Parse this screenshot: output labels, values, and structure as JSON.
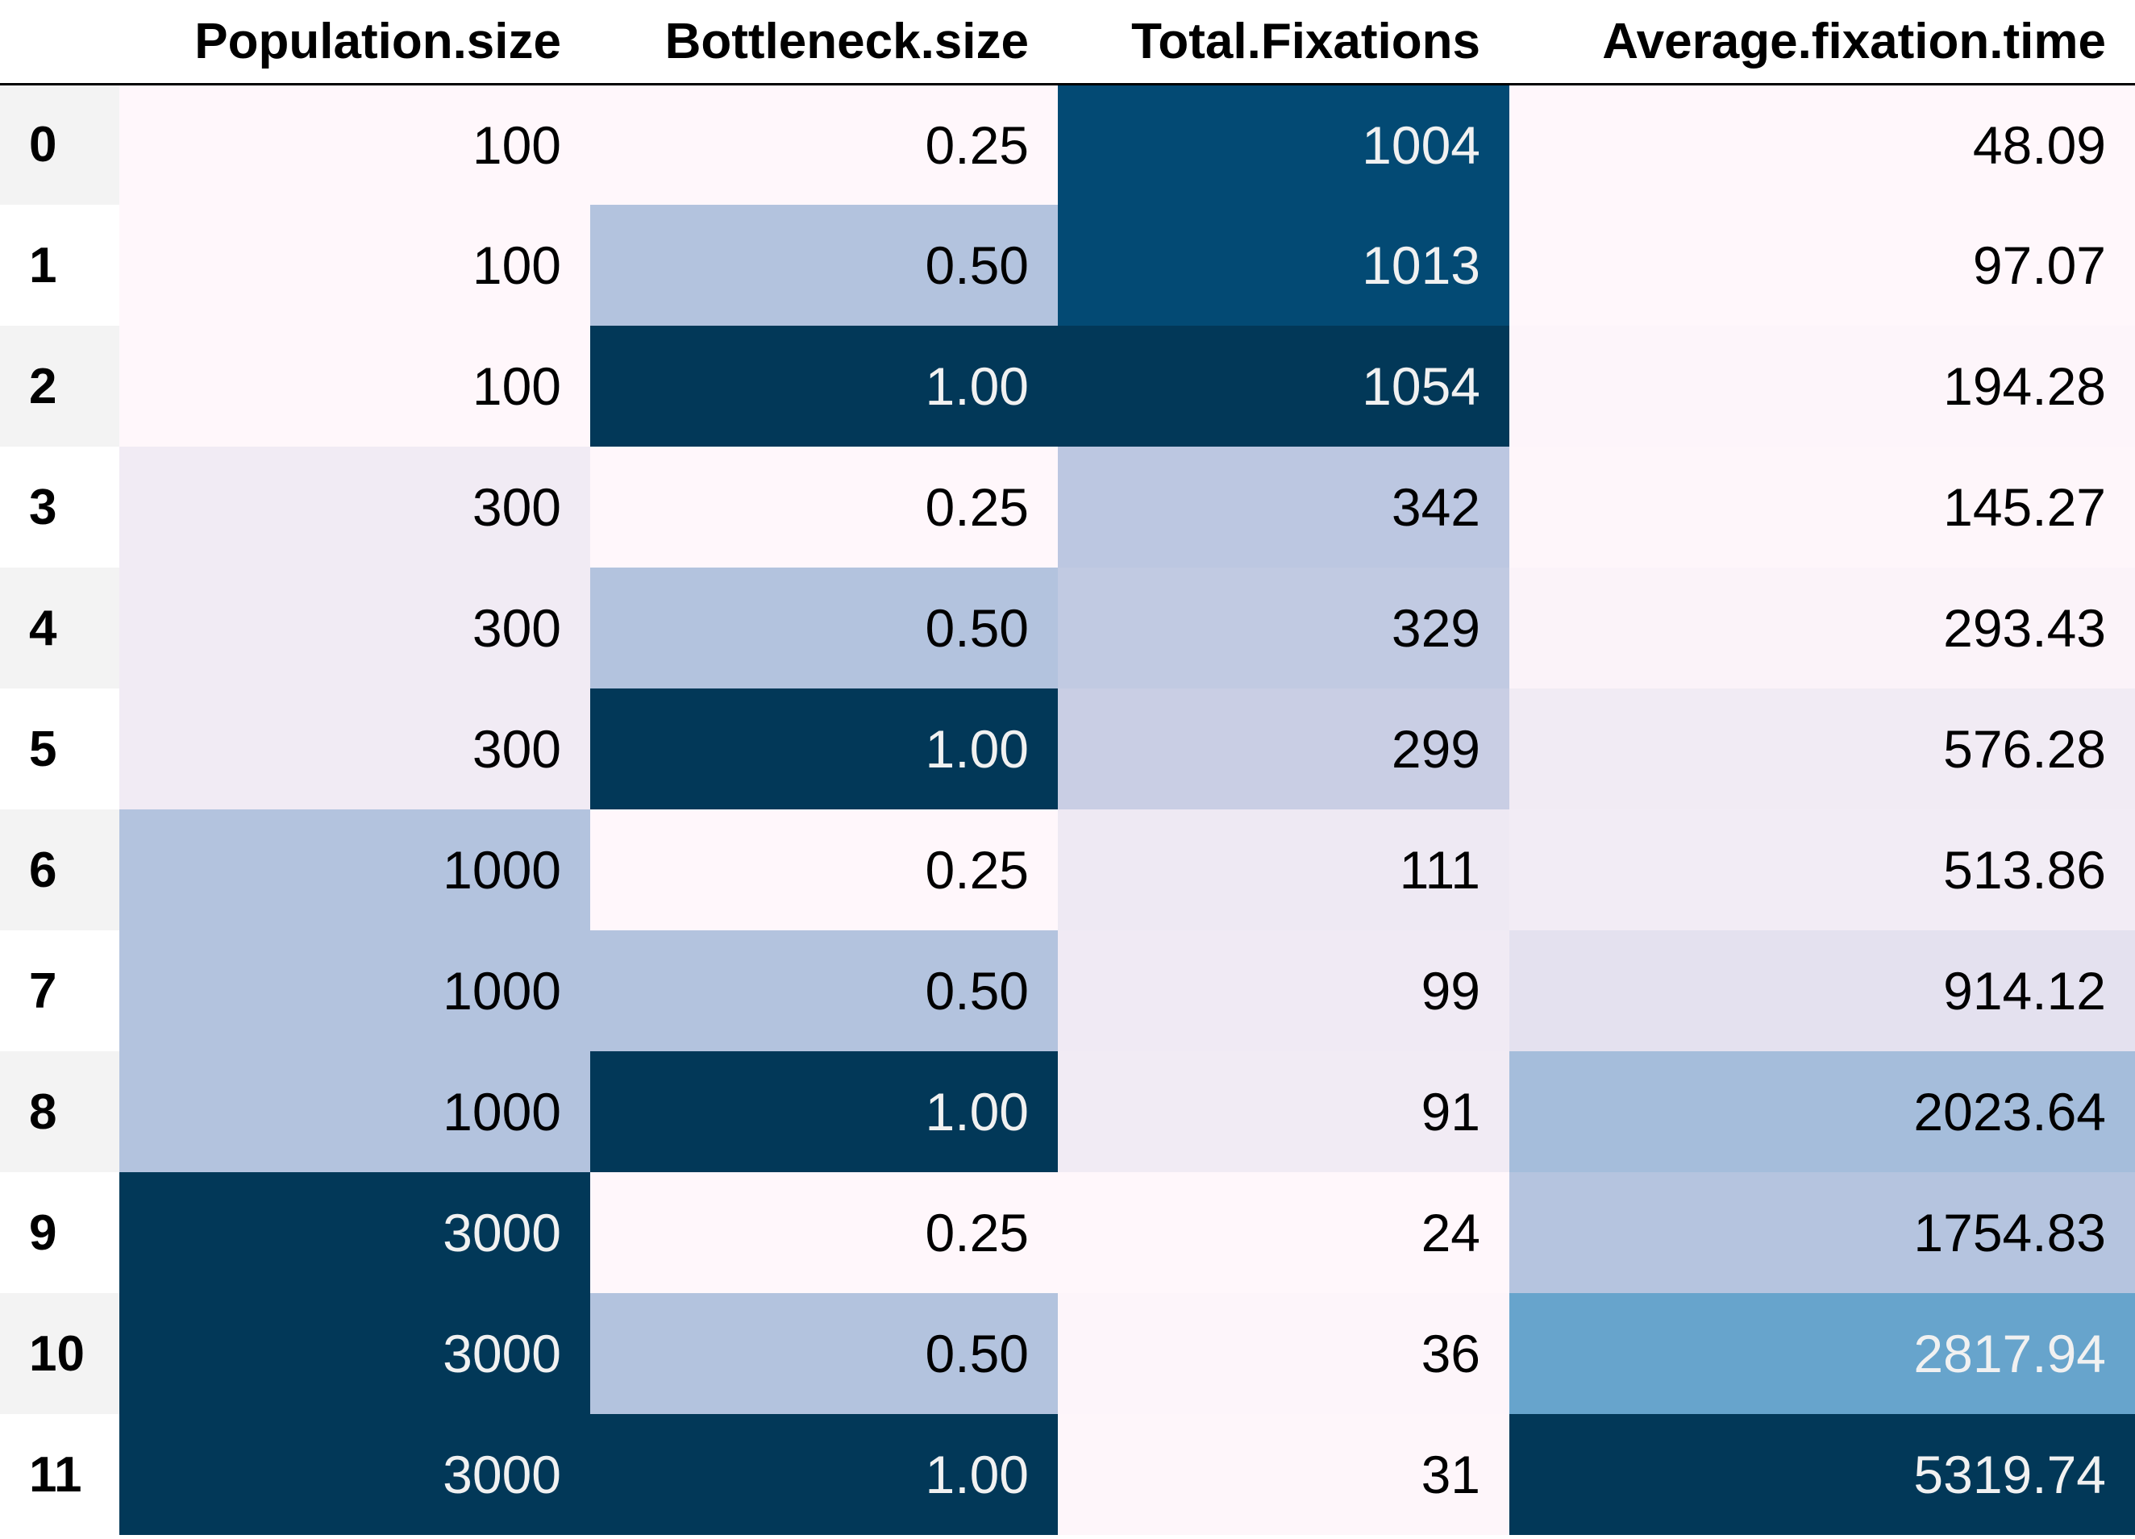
{
  "chart_data": {
    "type": "table",
    "columns": [
      "Population.size",
      "Bottleneck.size",
      "Total.Fixations",
      "Average.fixation.time"
    ],
    "rows": [
      {
        "index": "0",
        "cells": [
          "100",
          "0.25",
          "1004",
          "48.09"
        ]
      },
      {
        "index": "1",
        "cells": [
          "100",
          "0.50",
          "1013",
          "97.07"
        ]
      },
      {
        "index": "2",
        "cells": [
          "100",
          "1.00",
          "1054",
          "194.28"
        ]
      },
      {
        "index": "3",
        "cells": [
          "300",
          "0.25",
          "342",
          "145.27"
        ]
      },
      {
        "index": "4",
        "cells": [
          "300",
          "0.50",
          "329",
          "293.43"
        ]
      },
      {
        "index": "5",
        "cells": [
          "300",
          "1.00",
          "299",
          "576.28"
        ]
      },
      {
        "index": "6",
        "cells": [
          "1000",
          "0.25",
          "111",
          "513.86"
        ]
      },
      {
        "index": "7",
        "cells": [
          "1000",
          "0.50",
          "99",
          "914.12"
        ]
      },
      {
        "index": "8",
        "cells": [
          "1000",
          "1.00",
          "91",
          "2023.64"
        ]
      },
      {
        "index": "9",
        "cells": [
          "3000",
          "0.25",
          "24",
          "1754.83"
        ]
      },
      {
        "index": "10",
        "cells": [
          "3000",
          "0.50",
          "36",
          "2817.94"
        ]
      },
      {
        "index": "11",
        "cells": [
          "3000",
          "1.00",
          "31",
          "5319.74"
        ]
      }
    ],
    "cell_backgrounds": [
      [
        "#fff7fb",
        "#fff7fb",
        "#034a74",
        "#fff7fb"
      ],
      [
        "#fff7fb",
        "#b3c3de",
        "#034a74",
        "#fff7fb"
      ],
      [
        "#fff7fb",
        "#023858",
        "#023858",
        "#fdf5fa"
      ],
      [
        "#f1ebf4",
        "#fff7fb",
        "#bcc7e1",
        "#fef6fa"
      ],
      [
        "#f1ebf4",
        "#b3c3de",
        "#c1cae2",
        "#fbf3f9"
      ],
      [
        "#f1ebf4",
        "#023858",
        "#c9cee4",
        "#f1ebf4"
      ],
      [
        "#b3c3de",
        "#fff7fb",
        "#eee9f3",
        "#f2ecf5"
      ],
      [
        "#b3c3de",
        "#b3c3de",
        "#f0eaf4",
        "#e4e1ef"
      ],
      [
        "#b3c3de",
        "#023858",
        "#f1ebf4",
        "#a5bddb"
      ],
      [
        "#023858",
        "#fff7fb",
        "#fff7fb",
        "#b5c4df"
      ],
      [
        "#023858",
        "#b3c3de",
        "#fdf5fa",
        "#67a4cc"
      ],
      [
        "#023858",
        "#023858",
        "#fef6fa",
        "#023858"
      ]
    ],
    "cell_text_colors": [
      [
        "#000000",
        "#000000",
        "#f1f1f1",
        "#000000"
      ],
      [
        "#000000",
        "#000000",
        "#f1f1f1",
        "#000000"
      ],
      [
        "#000000",
        "#f1f1f1",
        "#f1f1f1",
        "#000000"
      ],
      [
        "#000000",
        "#000000",
        "#000000",
        "#000000"
      ],
      [
        "#000000",
        "#000000",
        "#000000",
        "#000000"
      ],
      [
        "#000000",
        "#f1f1f1",
        "#000000",
        "#000000"
      ],
      [
        "#000000",
        "#000000",
        "#000000",
        "#000000"
      ],
      [
        "#000000",
        "#000000",
        "#000000",
        "#000000"
      ],
      [
        "#000000",
        "#f1f1f1",
        "#000000",
        "#000000"
      ],
      [
        "#f1f1f1",
        "#000000",
        "#000000",
        "#000000"
      ],
      [
        "#f1f1f1",
        "#000000",
        "#000000",
        "#f1f1f1"
      ],
      [
        "#f1f1f1",
        "#f1f1f1",
        "#000000",
        "#f1f1f1"
      ]
    ],
    "colormap": "PuBu",
    "grid": false
  }
}
